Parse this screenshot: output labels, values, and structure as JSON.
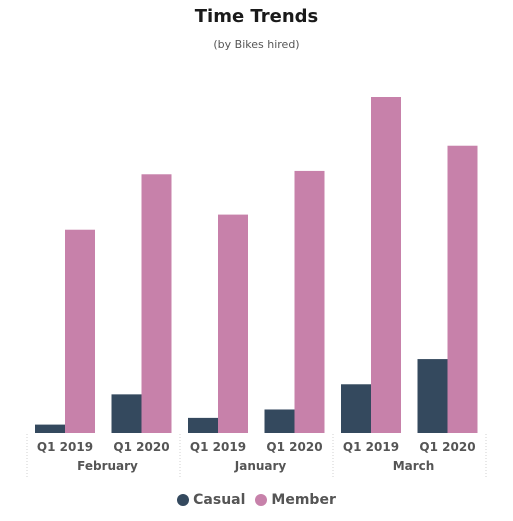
{
  "chart_data": {
    "type": "bar",
    "title": "Time Trends",
    "subtitle": "(by Bikes hired)",
    "xlabel": "",
    "ylabel": "",
    "groups": [
      {
        "label": "February",
        "categories": [
          "Q1 2019",
          "Q1 2020"
        ]
      },
      {
        "label": "January",
        "categories": [
          "Q1 2019",
          "Q1 2020"
        ]
      },
      {
        "label": "March",
        "categories": [
          "Q1 2019",
          "Q1 2020"
        ]
      }
    ],
    "categories": [
      "Q1 2019",
      "Q1 2020",
      "Q1 2019",
      "Q1 2020",
      "Q1 2019",
      "Q1 2020"
    ],
    "series": [
      {
        "name": "Casual",
        "color": "#34495e",
        "values": [
          2.5,
          11.5,
          4.5,
          7,
          14.5,
          22
        ]
      },
      {
        "name": "Member",
        "color": "#c781aa",
        "values": [
          60.5,
          77,
          65,
          78,
          100,
          85.5
        ]
      }
    ],
    "ylim": [
      0,
      100
    ],
    "grid": false,
    "legend_position": "bottom"
  }
}
